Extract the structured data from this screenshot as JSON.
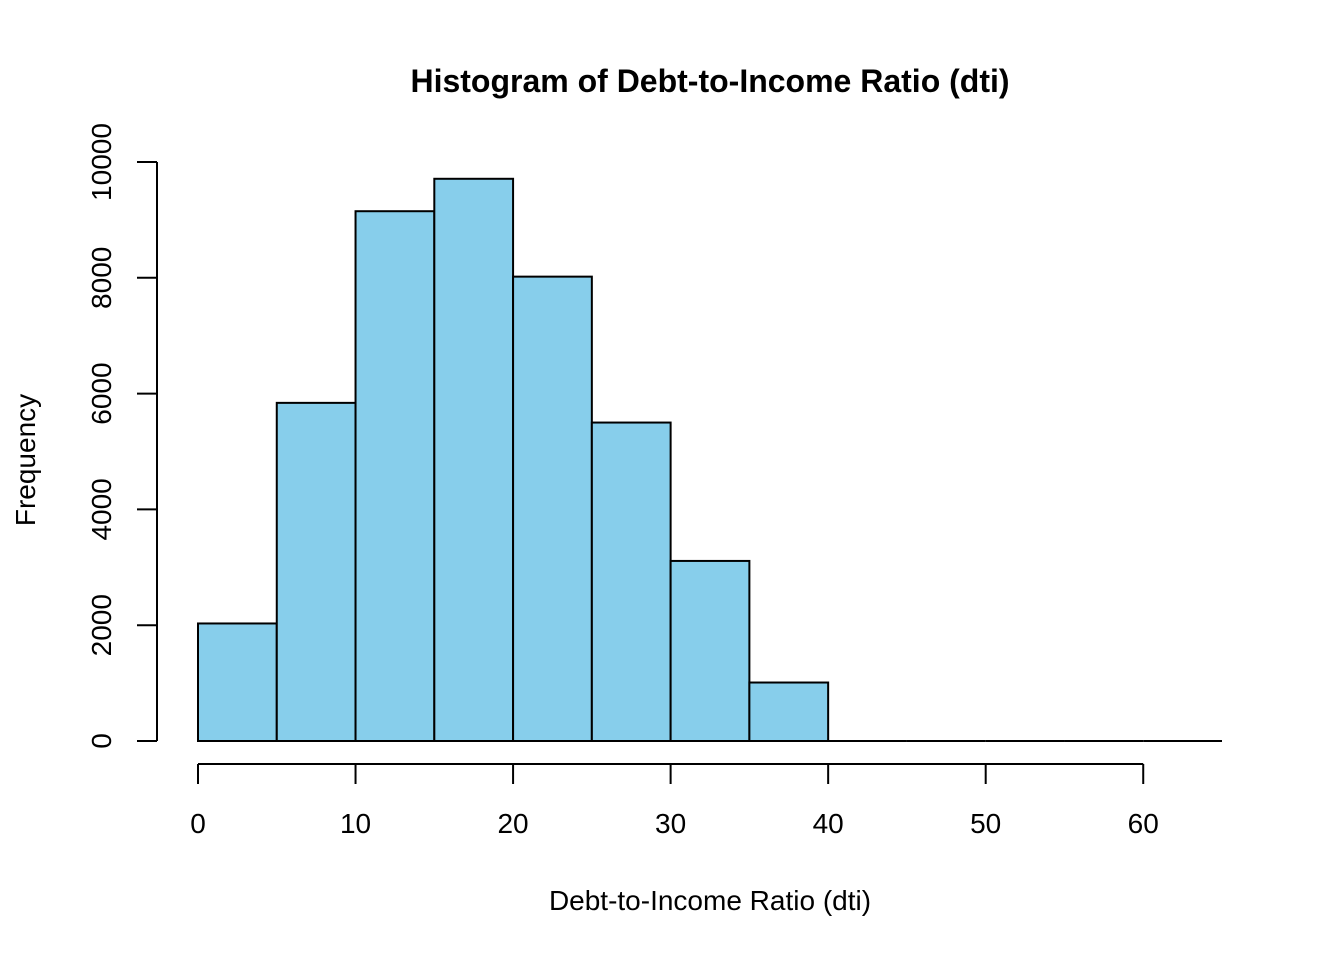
{
  "chart_data": {
    "type": "bar",
    "title": "Histogram of Debt-to-Income Ratio (dti)",
    "xlabel": "Debt-to-Income Ratio (dti)",
    "ylabel": "Frequency",
    "bins": [
      [
        0,
        5
      ],
      [
        5,
        10
      ],
      [
        10,
        15
      ],
      [
        15,
        20
      ],
      [
        20,
        25
      ],
      [
        25,
        30
      ],
      [
        30,
        35
      ],
      [
        35,
        40
      ],
      [
        40,
        45
      ],
      [
        45,
        50
      ],
      [
        50,
        55
      ],
      [
        55,
        60
      ],
      [
        60,
        65
      ]
    ],
    "values": [
      2030,
      5840,
      9150,
      9710,
      8020,
      5500,
      3110,
      1010,
      0,
      0,
      0,
      0,
      0
    ],
    "xlim": [
      0,
      65
    ],
    "ylim": [
      0,
      10000
    ],
    "x_ticks": [
      0,
      10,
      20,
      30,
      40,
      50,
      60
    ],
    "x_tick_labels": [
      "0",
      "10",
      "20",
      "30",
      "40",
      "50",
      "60"
    ],
    "y_ticks": [
      0,
      2000,
      4000,
      6000,
      8000,
      10000
    ],
    "y_tick_labels": [
      "0",
      "2000",
      "4000",
      "6000",
      "8000",
      "10000"
    ],
    "bar_color": "#87ceeb",
    "grid": false
  }
}
